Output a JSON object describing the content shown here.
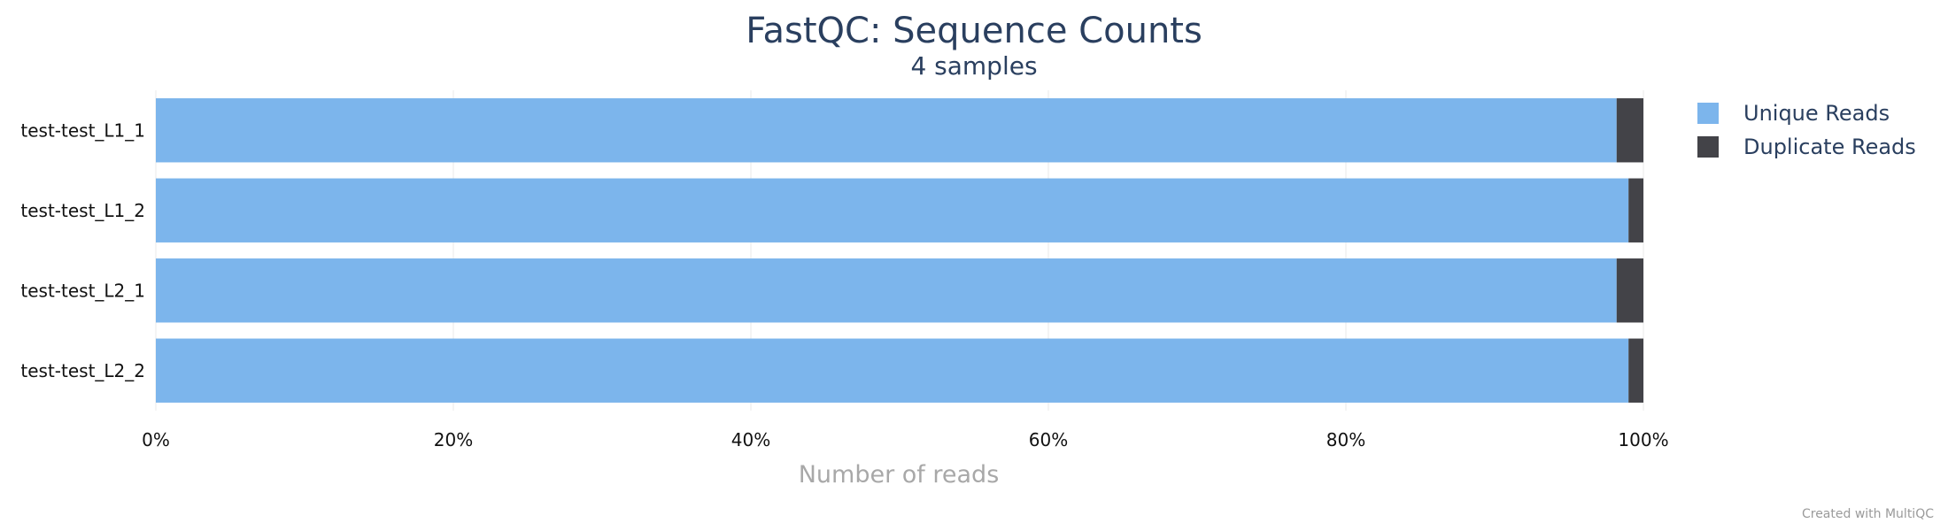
{
  "chart_data": {
    "type": "bar",
    "orientation": "horizontal",
    "stacked": true,
    "title": "FastQC: Sequence Counts",
    "subtitle": "4 samples",
    "xlabel": "Number of reads",
    "ylabel": "",
    "xlim": [
      0,
      100
    ],
    "x_ticks": [
      "0%",
      "20%",
      "40%",
      "60%",
      "80%",
      "100%"
    ],
    "grid": true,
    "legend_position": "top-right",
    "categories": [
      "test-test_L1_1",
      "test-test_L1_2",
      "test-test_L2_1",
      "test-test_L2_2"
    ],
    "series": [
      {
        "name": "Unique Reads",
        "color": "#7cb5ec",
        "values": [
          98.2,
          99.0,
          98.2,
          99.0
        ]
      },
      {
        "name": "Duplicate Reads",
        "color": "#434348",
        "values": [
          1.8,
          1.0,
          1.8,
          1.0
        ]
      }
    ]
  },
  "credit": "Created with MultiQC"
}
